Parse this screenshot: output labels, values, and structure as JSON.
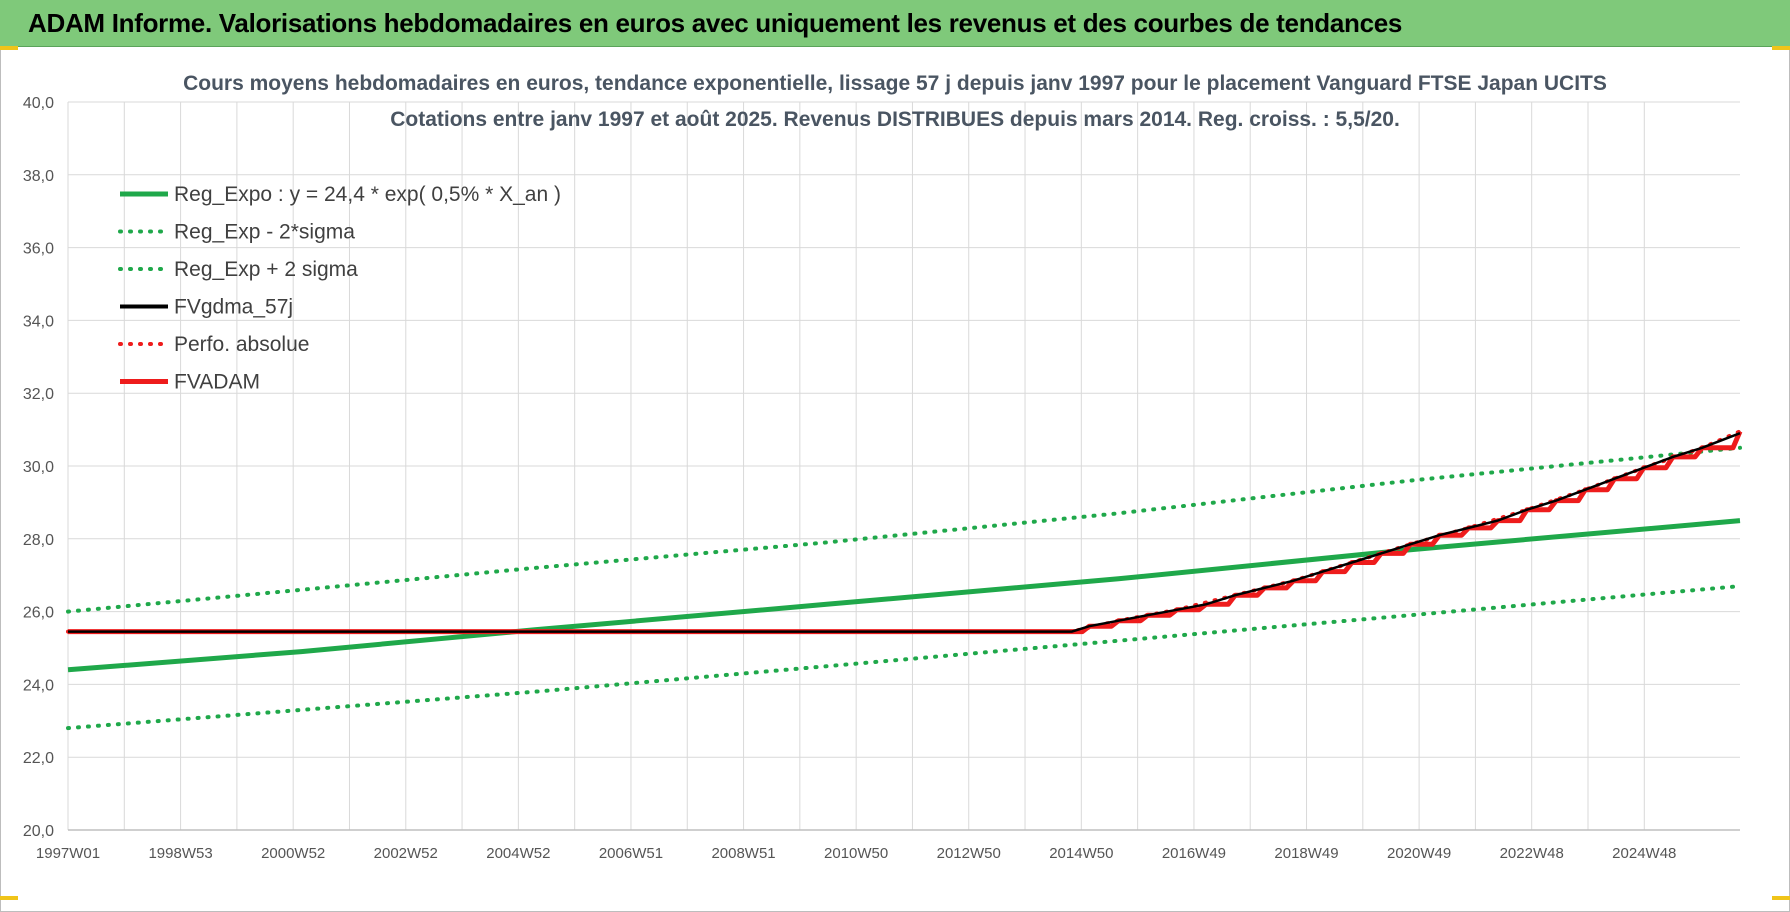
{
  "header": {
    "title": "ADAM Informe. Valorisations hebdomadaires en euros avec uniquement les revenus et des courbes de tendances"
  },
  "colors": {
    "header_band": "#7fc97a",
    "reg_green": "#1fa84a",
    "adam_red": "#ee1c1c",
    "gdma_black": "#000000",
    "grid": "#d9d9d9"
  },
  "chart_data": {
    "type": "line",
    "title": "Cours moyens hebdomadaires en euros, tendance exponentielle, lissage 57 j depuis janv 1997 pour le placement Vanguard FTSE Japan UCITS",
    "subtitle": "Cotations entre janv 1997 et août 2025. Revenus DISTRIBUES depuis mars 2014. Reg. croiss. : 5,5/20.",
    "xlabel": "",
    "ylabel": "",
    "x_tick_labels": [
      "1997W01",
      "1998W53",
      "2000W52",
      "2002W52",
      "2004W52",
      "2006W51",
      "2008W51",
      "2010W50",
      "2012W50",
      "2014W50",
      "2016W49",
      "2018W49",
      "2020W49",
      "2022W48",
      "2024W48"
    ],
    "x_range": [
      1997.0,
      2025.65
    ],
    "ylim": [
      20,
      40
    ],
    "y_ticks": [
      "20,0",
      "22,0",
      "24,0",
      "26,0",
      "28,0",
      "30,0",
      "32,0",
      "34,0",
      "36,0",
      "38,0",
      "40,0"
    ],
    "grid": true,
    "legend_position": "top-left",
    "series": [
      {
        "name": "Reg_Expo : y = 24,4 * exp( 0,5% *  X_an )",
        "style": "solid",
        "color": "#1fa84a",
        "x": [
          1997.0,
          2001.0,
          2005.0,
          2010.0,
          2015.0,
          2020.0,
          2025.65
        ],
        "values": [
          24.4,
          24.9,
          25.5,
          26.2,
          26.9,
          27.7,
          28.5
        ]
      },
      {
        "name": "Reg_Exp - 2*sigma",
        "style": "dotted",
        "color": "#1fa84a",
        "x": [
          1997.0,
          2001.0,
          2005.0,
          2010.0,
          2015.0,
          2020.0,
          2025.65
        ],
        "values": [
          22.8,
          23.3,
          23.8,
          24.5,
          25.2,
          25.9,
          26.7
        ]
      },
      {
        "name": "Reg_Exp + 2 sigma",
        "style": "dotted",
        "color": "#1fa84a",
        "x": [
          1997.0,
          2001.0,
          2005.0,
          2010.0,
          2015.0,
          2020.0,
          2025.65
        ],
        "values": [
          26.0,
          26.6,
          27.2,
          27.9,
          28.7,
          29.6,
          30.5
        ]
      },
      {
        "name": "FVgdma_57j",
        "style": "solid",
        "color": "#000000",
        "x": [
          1997.0,
          2014.2,
          2014.5,
          2015.0,
          2015.5,
          2016.0,
          2016.5,
          2017.0,
          2017.5,
          2018.0,
          2018.5,
          2019.0,
          2019.5,
          2020.0,
          2020.5,
          2021.0,
          2021.5,
          2022.0,
          2022.5,
          2023.0,
          2023.5,
          2024.0,
          2024.5,
          2025.0,
          2025.65
        ],
        "values": [
          25.45,
          25.45,
          25.6,
          25.75,
          25.9,
          26.05,
          26.2,
          26.45,
          26.65,
          26.85,
          27.1,
          27.35,
          27.6,
          27.85,
          28.1,
          28.3,
          28.5,
          28.8,
          29.05,
          29.35,
          29.65,
          29.95,
          30.25,
          30.5,
          30.9
        ]
      },
      {
        "name": "Perfo. absolue",
        "style": "dotted",
        "color": "#ee1c1c",
        "x": [
          1997.0,
          2014.2,
          2015.0,
          2016.0,
          2017.0,
          2018.0,
          2019.0,
          2020.0,
          2021.0,
          2022.0,
          2023.0,
          2024.0,
          2025.0,
          2025.65
        ],
        "values": [
          25.45,
          25.45,
          25.75,
          26.05,
          26.45,
          26.85,
          27.35,
          27.85,
          28.3,
          28.8,
          29.35,
          29.95,
          30.5,
          30.95
        ]
      },
      {
        "name": "FVADAM",
        "style": "solid-step",
        "color": "#ee1c1c",
        "x": [
          1997.0,
          2014.2,
          2014.5,
          2015.0,
          2015.5,
          2016.0,
          2016.5,
          2017.0,
          2017.5,
          2018.0,
          2018.5,
          2019.0,
          2019.5,
          2020.0,
          2020.5,
          2021.0,
          2021.5,
          2022.0,
          2022.5,
          2023.0,
          2023.5,
          2024.0,
          2024.5,
          2025.0,
          2025.65
        ],
        "values": [
          25.45,
          25.45,
          25.6,
          25.75,
          25.9,
          26.05,
          26.2,
          26.45,
          26.65,
          26.85,
          27.1,
          27.35,
          27.6,
          27.85,
          28.1,
          28.3,
          28.5,
          28.8,
          29.05,
          29.35,
          29.65,
          29.95,
          30.25,
          30.5,
          30.95
        ]
      }
    ]
  }
}
